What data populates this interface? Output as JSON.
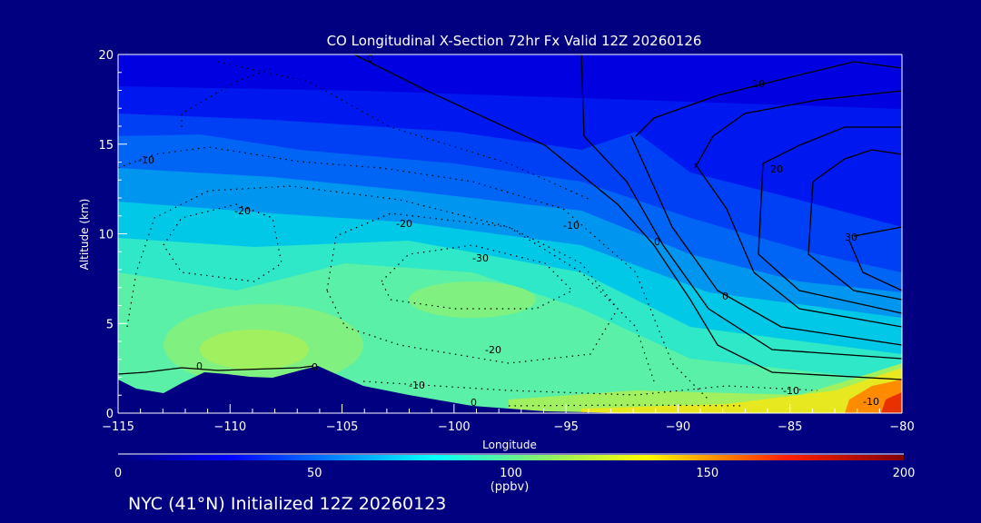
{
  "chart_data": {
    "type": "heatmap",
    "title": "CO Longitudinal X-Section 72hr  Fx Valid 12Z 20260126",
    "xlabel": "Longitude",
    "ylabel": "Altitude (km)",
    "xlim": [
      -115,
      -80
    ],
    "ylim": [
      0,
      20
    ],
    "xticks": [
      "-115",
      "-110",
      "-105",
      "-100",
      "-95",
      "-90",
      "-85",
      "-80"
    ],
    "yticks": [
      "0",
      "5",
      "10",
      "15",
      "20"
    ],
    "colorbar": {
      "range": [
        0,
        200
      ],
      "ticks": [
        "0",
        "50",
        "100",
        "150",
        "200"
      ],
      "units": "(ppbv)",
      "colors": [
        "#000080",
        "#0000ff",
        "#00ffff",
        "#ffff00",
        "#ff0000",
        "#800000"
      ]
    },
    "contour_labels": [
      "0",
      "-10",
      "-20",
      "-20",
      "-30",
      "-10",
      "0",
      "30",
      "20",
      "10",
      "0",
      "-20",
      "-10",
      "0",
      "0",
      "-10",
      "-10",
      "0"
    ],
    "fill_colors": [
      "#0000e0",
      "#0018f0",
      "#0040f5",
      "#0064f5",
      "#0096f0",
      "#00c8e6",
      "#2ee8c8",
      "#5af0a8",
      "#a0f060",
      "#e8e820",
      "#ff8c00",
      "#e83000"
    ]
  },
  "footer": "NYC (41°N) Initialized 12Z 20260123"
}
